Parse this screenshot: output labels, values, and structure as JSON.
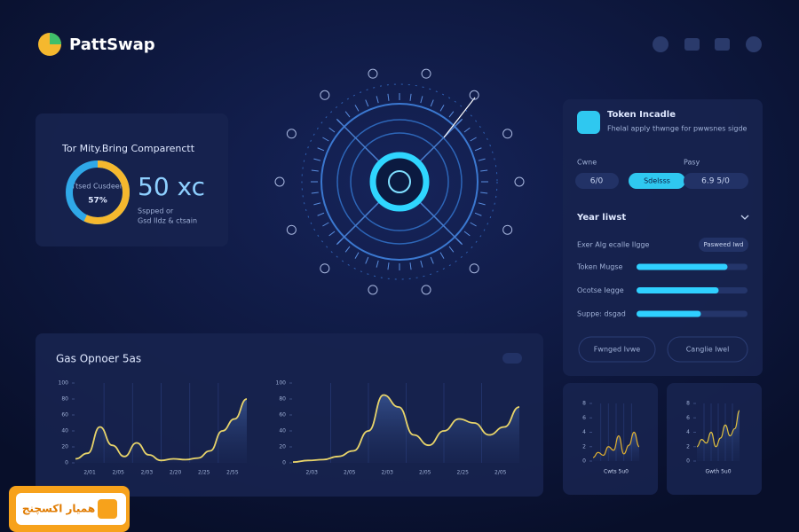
{
  "header": {
    "logo": "PattSwap"
  },
  "metric_card": {
    "title": "Tor Mity.Bring Comparenctt",
    "donut": {
      "caption": "Ttsed Cusdeen",
      "value": 57,
      "label": "57%"
    },
    "big_value": "50 xc",
    "notes": [
      "Sspped or",
      "Gsd Ildz & ctsain"
    ]
  },
  "token_panel": {
    "title": "Token Incadle",
    "subtitle": "Fhelal apply thwnge for pwwsnes sigde",
    "labels": [
      "Cwne",
      "Pasy"
    ],
    "pills": [
      "6/0",
      "Sdelsss",
      "6.9 5/0"
    ],
    "section": "Year liwst",
    "filter_label": "Exer Alg ecalle Ilgge",
    "filter_button": "Pasweed Iwd",
    "progress": [
      {
        "label": "Token Mugse",
        "value": 82
      },
      {
        "label": "Ocotse Iegge",
        "value": 74
      },
      {
        "label": "Suppe: dsgad",
        "value": 58
      }
    ],
    "buttons": [
      "Fwnged Ivwe",
      "Canglie Iwel"
    ]
  },
  "gas_panel": {
    "title": "Gas Opnoer 5as",
    "charts": [
      {
        "ylim": [
          0,
          100
        ],
        "yticks": [
          0,
          20,
          40,
          60,
          80,
          100
        ],
        "categories": [
          "2/01",
          "2/05",
          "2/03",
          "2/20",
          "2/25",
          "2/55"
        ],
        "values": [
          5,
          12,
          45,
          22,
          8,
          25,
          10,
          3,
          5,
          4,
          6,
          15,
          40,
          55,
          80
        ]
      },
      {
        "ylim": [
          0,
          100
        ],
        "yticks": [
          0,
          20,
          40,
          60,
          80,
          100
        ],
        "categories": [
          "2/03",
          "2/05",
          "2/03",
          "2/05",
          "2/25",
          "2/05"
        ],
        "values": [
          1,
          3,
          4,
          8,
          15,
          40,
          85,
          70,
          35,
          22,
          40,
          55,
          50,
          35,
          45,
          70
        ]
      }
    ]
  },
  "mini_charts": [
    {
      "ylim": [
        0,
        8
      ],
      "yticks": [
        0,
        2,
        4,
        6,
        8
      ],
      "caption": "Cwts 5u0",
      "values": [
        0.5,
        1.2,
        0.8,
        2,
        1.5,
        3.5,
        1,
        2.2,
        4,
        2
      ]
    },
    {
      "ylim": [
        0,
        8
      ],
      "yticks": [
        0,
        2,
        4,
        6,
        8
      ],
      "caption": "Gwth 5u0",
      "values": [
        2,
        3,
        2.5,
        4,
        2,
        3.2,
        5,
        3.5,
        4.5,
        7
      ]
    }
  ],
  "watermark": "همیار اکسچنج"
}
